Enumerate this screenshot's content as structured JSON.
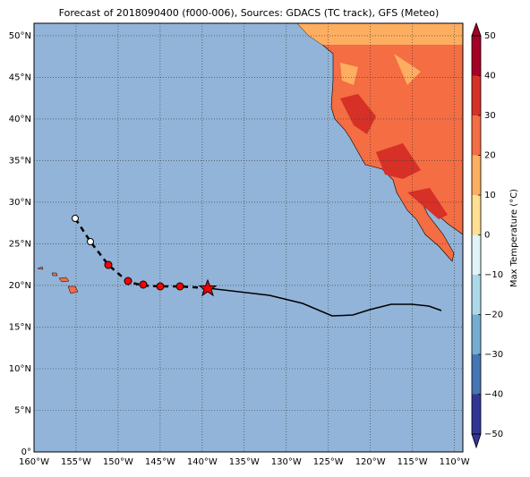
{
  "chart_data": {
    "type": "map",
    "title": "Forecast of 2018090400 (f000-006), Sources: GDACS (TC track), GFS (Meteo)",
    "xlim": [
      -160,
      -109
    ],
    "ylim": [
      0,
      51.5
    ],
    "xticks": [
      {
        "value": -160,
        "label": "160°W"
      },
      {
        "value": -155,
        "label": "155°W"
      },
      {
        "value": -150,
        "label": "150°W"
      },
      {
        "value": -145,
        "label": "145°W"
      },
      {
        "value": -140,
        "label": "140°W"
      },
      {
        "value": -135,
        "label": "135°W"
      },
      {
        "value": -130,
        "label": "130°W"
      },
      {
        "value": -125,
        "label": "125°W"
      },
      {
        "value": -120,
        "label": "120°W"
      },
      {
        "value": -115,
        "label": "115°W"
      },
      {
        "value": -110,
        "label": "110°W"
      }
    ],
    "yticks": [
      {
        "value": 0,
        "label": "0°"
      },
      {
        "value": 5,
        "label": "5°N"
      },
      {
        "value": 10,
        "label": "10°N"
      },
      {
        "value": 15,
        "label": "15°N"
      },
      {
        "value": 20,
        "label": "20°N"
      },
      {
        "value": 25,
        "label": "25°N"
      },
      {
        "value": 30,
        "label": "30°N"
      },
      {
        "value": 35,
        "label": "35°N"
      },
      {
        "value": 40,
        "label": "40°N"
      },
      {
        "value": 45,
        "label": "45°N"
      },
      {
        "value": 50,
        "label": "50°N"
      }
    ],
    "grid": true,
    "colorbar": {
      "label": "Max Temperature (°C)",
      "lim": [
        -50,
        50
      ],
      "ticks": [
        {
          "value": -50,
          "label": "−50"
        },
        {
          "value": -40,
          "label": "−40"
        },
        {
          "value": -30,
          "label": "−30"
        },
        {
          "value": -20,
          "label": "−20"
        },
        {
          "value": -10,
          "label": "−10"
        },
        0,
        10,
        20,
        30,
        40,
        50
      ],
      "colors": [
        "#313695",
        "#4575b4",
        "#74add1",
        "#abd9e9",
        "#e0f3f8",
        "#fee090",
        "#fdae61",
        "#f46d43",
        "#d73027",
        "#a50026"
      ]
    }
  }
}
